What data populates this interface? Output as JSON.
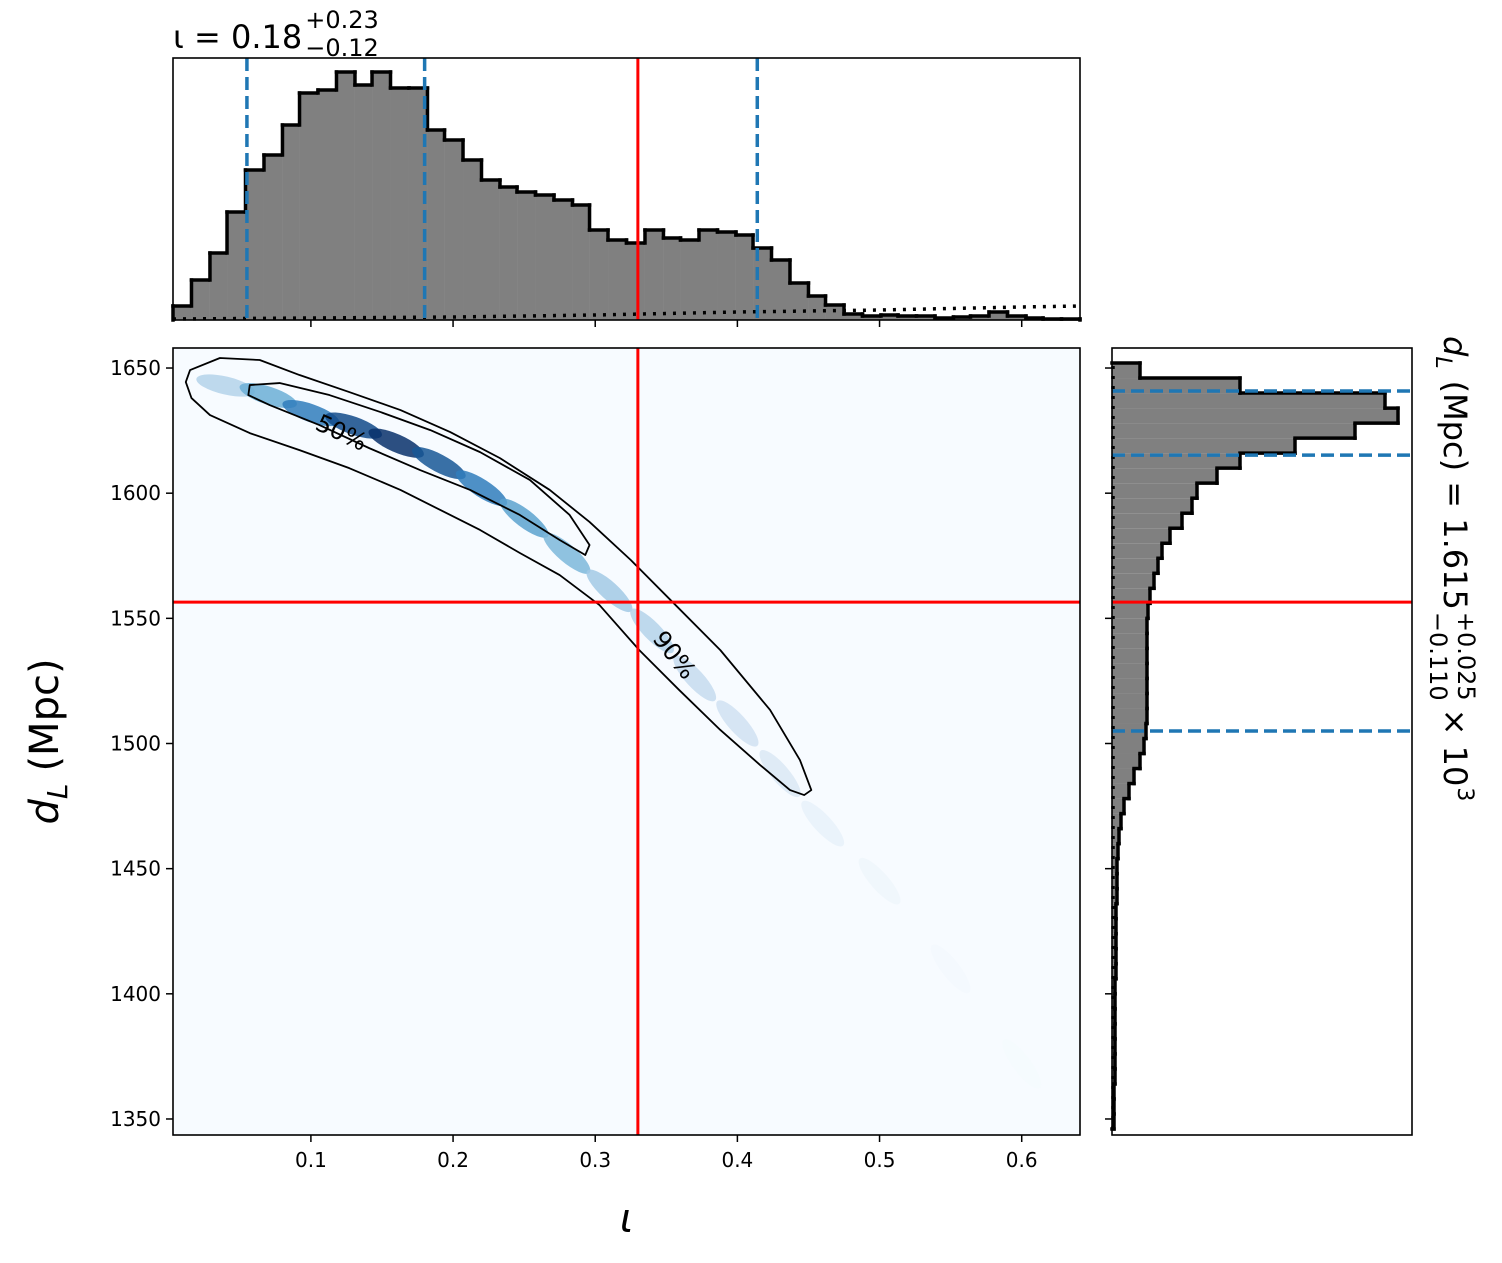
{
  "chart_data": [
    {
      "type": "histogram",
      "title": {
        "main": "ι = 0.18",
        "sup": "+0.23",
        "sub": "−0.12"
      },
      "bins": [
        0.003,
        0.016,
        0.029,
        0.041,
        0.054,
        0.067,
        0.08,
        0.092,
        0.105,
        0.118,
        0.131,
        0.143,
        0.156,
        0.169,
        0.182,
        0.194,
        0.207,
        0.22,
        0.233,
        0.245,
        0.258,
        0.271,
        0.284,
        0.296,
        0.309,
        0.322,
        0.335,
        0.348,
        0.36,
        0.373,
        0.386,
        0.399,
        0.411,
        0.424,
        0.437,
        0.45,
        0.462,
        0.475,
        0.488,
        0.501,
        0.513,
        0.526,
        0.539,
        0.552,
        0.564,
        0.577,
        0.59,
        0.603,
        0.615,
        0.628,
        0.641
      ],
      "values": [
        14,
        40,
        67,
        108,
        150,
        165,
        195,
        227,
        230,
        248,
        235,
        248,
        232,
        232,
        190,
        180,
        160,
        140,
        133,
        128,
        125,
        120,
        115,
        90,
        80,
        77,
        90,
        82,
        80,
        90,
        88,
        85,
        72,
        60,
        37,
        24,
        15,
        6,
        4,
        5,
        4,
        4,
        2,
        3,
        4,
        8,
        4,
        2,
        1,
        1
      ],
      "color": "#808080",
      "edgecolor": "#000000",
      "xlim": [
        0.003,
        0.641
      ],
      "ylim": [
        0,
        262
      ],
      "xticks": [
        0.1,
        0.2,
        0.3,
        0.4,
        0.5,
        0.6
      ],
      "tick_labels": false,
      "quantiles": [
        0.055,
        0.18,
        0.414
      ],
      "quantile_color": "#1f77b4",
      "truth": 0.33,
      "truth_color": "#ff0000",
      "prior": {
        "x": [
          0.003,
          0.1,
          0.2,
          0.3,
          0.4,
          0.5,
          0.6,
          0.641
        ],
        "values": [
          1,
          2,
          3,
          5,
          8,
          10,
          13,
          14
        ]
      }
    },
    {
      "type": "density",
      "xlabel": "ι",
      "ylabel": {
        "main": "d",
        "sub": "L",
        "rest": "(Mpc)"
      },
      "xlim": [
        0.003,
        0.641
      ],
      "ylim": [
        1343.6,
        1658
      ],
      "xticks": [
        0.1,
        0.2,
        0.3,
        0.4,
        0.5,
        0.6
      ],
      "yticks": [
        1350,
        1400,
        1450,
        1500,
        1550,
        1600,
        1650
      ],
      "colormap": [
        "#f7fbff",
        "#c6dbef",
        "#6baed6",
        "#2171b5",
        "#08306b"
      ],
      "ridge": {
        "x": [
          0.04,
          0.07,
          0.1,
          0.13,
          0.16,
          0.19,
          0.22,
          0.25,
          0.28,
          0.31,
          0.34,
          0.37,
          0.4,
          0.43,
          0.46,
          0.5,
          0.55,
          0.6
        ],
        "y": [
          1643,
          1639,
          1632,
          1627,
          1620,
          1612,
          1602,
          1590,
          1576,
          1561,
          1545,
          1526,
          1508,
          1488,
          1468,
          1445,
          1410,
          1372
        ],
        "values": [
          0.3,
          0.5,
          0.7,
          0.9,
          1.0,
          0.85,
          0.7,
          0.55,
          0.45,
          0.35,
          0.3,
          0.25,
          0.2,
          0.15,
          0.08,
          0.04,
          0.02,
          0.01
        ]
      },
      "contours": [
        {
          "label": "50%",
          "x": [
            0.057,
            0.078,
            0.113,
            0.149,
            0.184,
            0.219,
            0.254,
            0.282,
            0.296,
            0.293,
            0.275,
            0.247,
            0.212,
            0.177,
            0.141,
            0.106,
            0.071,
            0.056
          ],
          "y": [
            1643.2,
            1644.0,
            1639.2,
            1632.4,
            1625.2,
            1616.4,
            1605.3,
            1591.3,
            1579.3,
            1575.3,
            1581.3,
            1591.3,
            1601.3,
            1609.2,
            1618.0,
            1627.2,
            1635.2,
            1639.2
          ]
        },
        {
          "label": "90%",
          "x": [
            0.015,
            0.036,
            0.064,
            0.092,
            0.127,
            0.163,
            0.198,
            0.233,
            0.268,
            0.296,
            0.325,
            0.353,
            0.388,
            0.423,
            0.444,
            0.452,
            0.447,
            0.437,
            0.416,
            0.388,
            0.359,
            0.331,
            0.303,
            0.275,
            0.247,
            0.219,
            0.191,
            0.163,
            0.127,
            0.092,
            0.057,
            0.029,
            0.016,
            0.012
          ],
          "y": [
            1649.2,
            1654.0,
            1653.2,
            1647.2,
            1640.4,
            1633.2,
            1624.4,
            1614.0,
            1601.3,
            1588.5,
            1573.3,
            1557.3,
            1537.3,
            1513.4,
            1493.4,
            1481.4,
            1479.4,
            1481.4,
            1491.4,
            1505.4,
            1521.4,
            1537.3,
            1555.3,
            1567.3,
            1576.1,
            1585.3,
            1593.3,
            1601.3,
            1610.0,
            1617.2,
            1624.0,
            1631.2,
            1638.0,
            1644.4
          ]
        }
      ],
      "contour_color": "#000000",
      "truth": {
        "x": 0.33,
        "y": 1556.5
      },
      "truth_color": "#ff0000"
    },
    {
      "type": "histogram",
      "orientation": "horizontal",
      "title": {
        "main": "d",
        "sub_l": "L",
        "rest": "(Mpc) = 1.615",
        "sup": "+0.025",
        "sub": "−0.110",
        "times": "× 10",
        "exp": "3"
      },
      "bins": [
        1346,
        1352,
        1358,
        1364,
        1370,
        1376,
        1382,
        1388,
        1394,
        1400,
        1406,
        1412,
        1418,
        1424,
        1430,
        1436,
        1442,
        1448,
        1454,
        1460,
        1466,
        1472,
        1478,
        1484,
        1490,
        1496,
        1502,
        1508,
        1514,
        1520,
        1526,
        1532,
        1538,
        1544,
        1550,
        1556,
        1562,
        1568,
        1574,
        1580,
        1586,
        1592,
        1598,
        1604,
        1610,
        1616,
        1622,
        1628,
        1634,
        1640,
        1646,
        1652
      ],
      "values": [
        2,
        2,
        2,
        3,
        3,
        3,
        3,
        3,
        3,
        3,
        4,
        4,
        4,
        4,
        4,
        5,
        5,
        5,
        6,
        7,
        9,
        12,
        17,
        22,
        28,
        32,
        34,
        35,
        35,
        35,
        35,
        35,
        35,
        35,
        36,
        38,
        42,
        46,
        50,
        58,
        70,
        80,
        85,
        105,
        128,
        183,
        243,
        286,
        273,
        128,
        28
      ],
      "color": "#808080",
      "edgecolor": "#000000",
      "xlim": [
        0,
        300
      ],
      "ylim": [
        1343.6,
        1658
      ],
      "yticks": [
        1350,
        1400,
        1450,
        1500,
        1550,
        1600,
        1650
      ],
      "tick_labels": false,
      "quantiles": [
        1505.0,
        1615.2,
        1640.8
      ],
      "quantile_color": "#1f77b4",
      "truth": 1556.5,
      "truth_color": "#ff0000",
      "prior": {
        "y": [
          1346,
          1652
        ],
        "values": [
          1,
          1
        ]
      }
    }
  ]
}
